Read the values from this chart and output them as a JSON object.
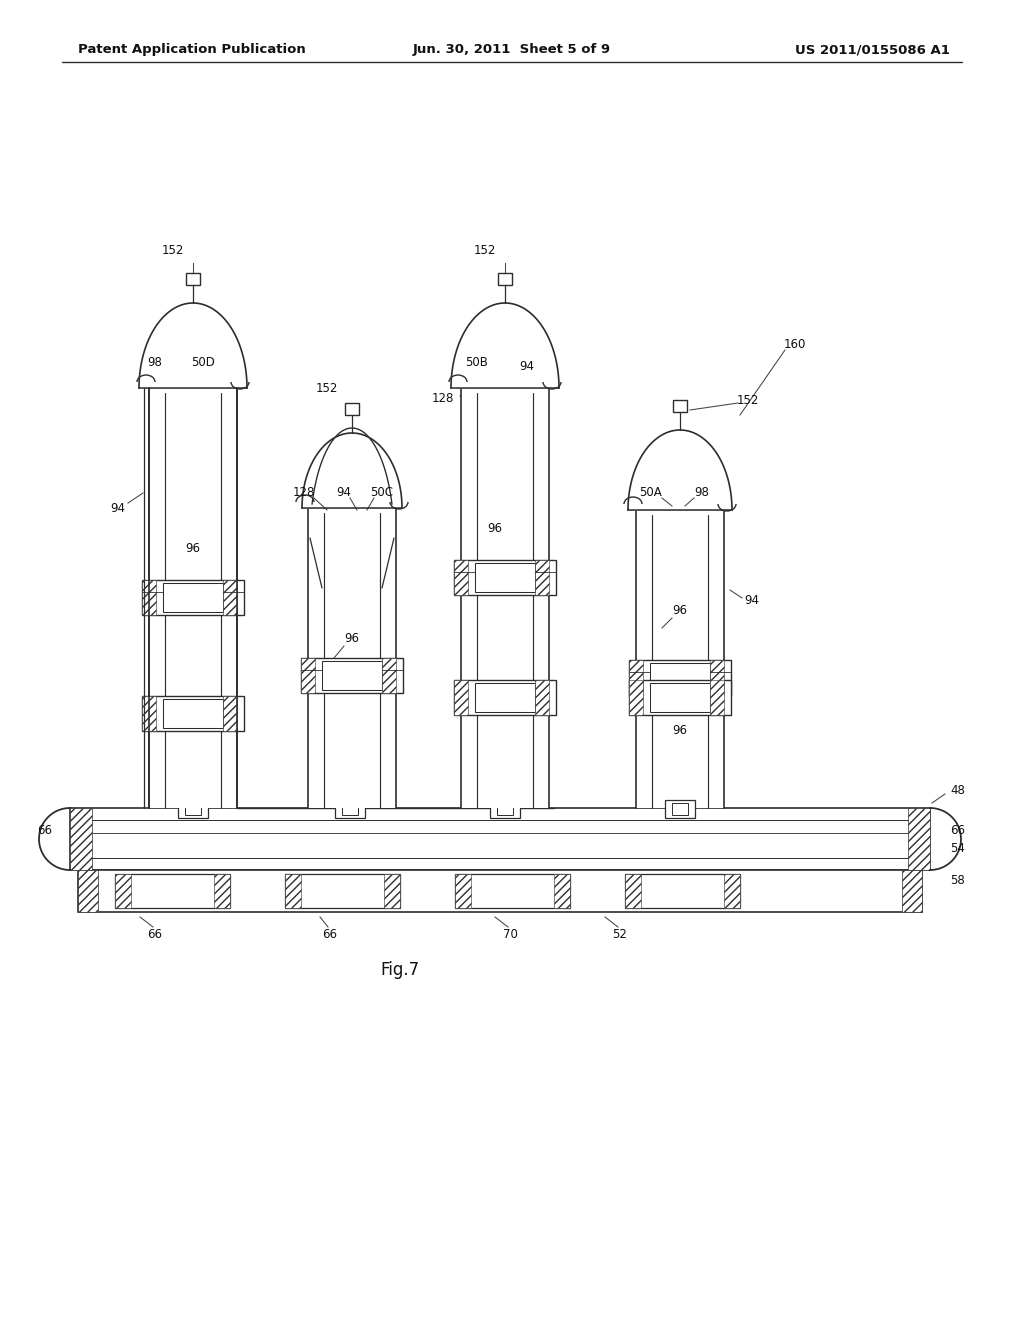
{
  "header_left": "Patent Application Publication",
  "header_center": "Jun. 30, 2011  Sheet 5 of 9",
  "header_right": "US 2011/0155086 A1",
  "caption": "Fig.7",
  "bg": "#ffffff",
  "lc": "#2d2d2d"
}
